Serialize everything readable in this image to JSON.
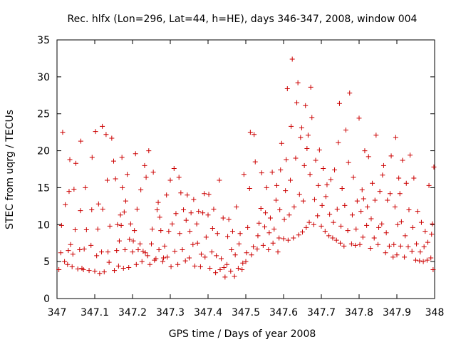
{
  "chart_data": {
    "type": "scatter",
    "title": "Rec. hlfx (Lon=296, Lat=44, h=HE), days 346-347, 2008, window 004",
    "xlabel": "GPS time / Days of year 2008",
    "ylabel": "STEC from uqrg / TECUs",
    "xlim": [
      347,
      348
    ],
    "ylim": [
      0,
      35
    ],
    "x_ticks": [
      "347",
      "347.1",
      "347.2",
      "347.3",
      "347.4",
      "347.5",
      "347.6",
      "347.7",
      "347.8",
      "347.9",
      "348"
    ],
    "y_ticks": [
      "0",
      "5",
      "10",
      "15",
      "20",
      "25",
      "30",
      "35"
    ],
    "grid": false,
    "marker": "+",
    "series_color": "#cc0000",
    "points": [
      [
        347.005,
        3.9
      ],
      [
        347.01,
        6.2
      ],
      [
        347.012,
        9.9
      ],
      [
        347.015,
        22.5
      ],
      [
        347.02,
        5.0
      ],
      [
        347.022,
        12.7
      ],
      [
        347.028,
        4.6
      ],
      [
        347.03,
        6.5
      ],
      [
        347.032,
        14.5
      ],
      [
        347.034,
        18.8
      ],
      [
        347.04,
        4.3
      ],
      [
        347.042,
        6.0
      ],
      [
        347.045,
        14.8
      ],
      [
        347.048,
        9.3
      ],
      [
        347.05,
        18.3
      ],
      [
        347.055,
        4.0
      ],
      [
        347.06,
        6.6
      ],
      [
        347.062,
        11.9
      ],
      [
        347.063,
        21.3
      ],
      [
        347.07,
        3.9
      ],
      [
        347.072,
        6.7
      ],
      [
        347.075,
        15.0
      ],
      [
        347.078,
        9.3
      ],
      [
        347.085,
        3.8
      ],
      [
        347.09,
        7.2
      ],
      [
        347.092,
        12.0
      ],
      [
        347.093,
        19.1
      ],
      [
        347.1,
        3.7
      ],
      [
        347.105,
        5.8
      ],
      [
        347.102,
        22.6
      ],
      [
        347.108,
        9.4
      ],
      [
        347.113,
        3.4
      ],
      [
        347.118,
        6.3
      ],
      [
        347.12,
        23.3
      ],
      [
        347.121,
        12.1
      ],
      [
        347.125,
        3.6
      ],
      [
        347.13,
        22.2
      ],
      [
        347.133,
        16.0
      ],
      [
        347.135,
        6.3
      ],
      [
        347.138,
        4.9
      ],
      [
        347.14,
        9.8
      ],
      [
        347.145,
        21.7
      ],
      [
        347.15,
        18.6
      ],
      [
        347.152,
        3.8
      ],
      [
        347.155,
        16.2
      ],
      [
        347.158,
        6.5
      ],
      [
        347.16,
        10.0
      ],
      [
        347.163,
        4.4
      ],
      [
        347.165,
        7.8
      ],
      [
        347.168,
        11.3
      ],
      [
        347.172,
        19.1
      ],
      [
        347.173,
        15.0
      ],
      [
        347.176,
        4.1
      ],
      [
        347.178,
        11.7
      ],
      [
        347.18,
        6.6
      ],
      [
        347.182,
        13.2
      ],
      [
        347.186,
        16.8
      ],
      [
        347.19,
        4.2
      ],
      [
        347.192,
        8.0
      ],
      [
        347.195,
        10.1
      ],
      [
        347.2,
        6.3
      ],
      [
        347.202,
        7.8
      ],
      [
        347.205,
        9.2
      ],
      [
        347.208,
        19.6
      ],
      [
        347.21,
        4.6
      ],
      [
        347.212,
        12.1
      ],
      [
        347.215,
        6.6
      ],
      [
        347.22,
        7.4
      ],
      [
        347.222,
        14.7
      ],
      [
        347.225,
        5.0
      ],
      [
        347.228,
        6.4
      ],
      [
        347.232,
        18.0
      ],
      [
        347.234,
        6.2
      ],
      [
        347.236,
        16.4
      ],
      [
        347.24,
        5.8
      ],
      [
        347.243,
        20.0
      ],
      [
        347.246,
        4.6
      ],
      [
        347.25,
        7.4
      ],
      [
        347.252,
        9.4
      ],
      [
        347.255,
        17.1
      ],
      [
        347.258,
        5.2
      ],
      [
        347.262,
        5.4
      ],
      [
        347.265,
        12.0
      ],
      [
        347.268,
        13.0
      ],
      [
        347.27,
        6.6
      ],
      [
        347.272,
        11.0
      ],
      [
        347.275,
        9.2
      ],
      [
        347.28,
        5.0
      ],
      [
        347.282,
        5.5
      ],
      [
        347.285,
        7.1
      ],
      [
        347.29,
        14.0
      ],
      [
        347.292,
        5.6
      ],
      [
        347.296,
        9.1
      ],
      [
        347.3,
        16.0
      ],
      [
        347.302,
        4.3
      ],
      [
        347.305,
        10.1
      ],
      [
        347.31,
        17.6
      ],
      [
        347.312,
        6.4
      ],
      [
        347.315,
        11.5
      ],
      [
        347.32,
        4.6
      ],
      [
        347.323,
        16.4
      ],
      [
        347.325,
        8.8
      ],
      [
        347.328,
        14.3
      ],
      [
        347.332,
        6.6
      ],
      [
        347.335,
        12.0
      ],
      [
        347.34,
        5.1
      ],
      [
        347.342,
        10.6
      ],
      [
        347.345,
        14.0
      ],
      [
        347.35,
        5.5
      ],
      [
        347.352,
        9.1
      ],
      [
        347.355,
        11.6
      ],
      [
        347.36,
        7.3
      ],
      [
        347.362,
        13.4
      ],
      [
        347.365,
        4.4
      ],
      [
        347.37,
        10.1
      ],
      [
        347.372,
        7.5
      ],
      [
        347.375,
        11.8
      ],
      [
        347.38,
        4.3
      ],
      [
        347.382,
        6.0
      ],
      [
        347.386,
        11.6
      ],
      [
        347.39,
        14.2
      ],
      [
        347.392,
        5.6
      ],
      [
        347.395,
        8.3
      ],
      [
        347.4,
        11.3
      ],
      [
        347.402,
        14.1
      ],
      [
        347.405,
        4.1
      ],
      [
        347.41,
        6.3
      ],
      [
        347.412,
        9.5
      ],
      [
        347.415,
        12.1
      ],
      [
        347.42,
        3.5
      ],
      [
        347.422,
        5.8
      ],
      [
        347.425,
        8.8
      ],
      [
        347.43,
        16.0
      ],
      [
        347.432,
        3.9
      ],
      [
        347.435,
        5.4
      ],
      [
        347.44,
        10.9
      ],
      [
        347.442,
        4.2
      ],
      [
        347.445,
        2.9
      ],
      [
        347.45,
        4.6
      ],
      [
        347.452,
        8.4
      ],
      [
        347.455,
        10.7
      ],
      [
        347.46,
        3.7
      ],
      [
        347.462,
        6.6
      ],
      [
        347.465,
        9.1
      ],
      [
        347.47,
        3.0
      ],
      [
        347.472,
        5.9
      ],
      [
        347.475,
        12.4
      ],
      [
        347.48,
        4.1
      ],
      [
        347.482,
        7.4
      ],
      [
        347.485,
        8.8
      ],
      [
        347.49,
        3.9
      ],
      [
        347.492,
        4.8
      ],
      [
        347.495,
        16.8
      ],
      [
        347.5,
        5.0
      ],
      [
        347.502,
        6.2
      ],
      [
        347.505,
        9.6
      ],
      [
        347.51,
        14.9
      ],
      [
        347.512,
        22.5
      ],
      [
        347.515,
        5.9
      ],
      [
        347.52,
        7.0
      ],
      [
        347.522,
        22.2
      ],
      [
        347.525,
        18.5
      ],
      [
        347.53,
        6.7
      ],
      [
        347.532,
        8.5
      ],
      [
        347.535,
        10.2
      ],
      [
        347.54,
        12.2
      ],
      [
        347.542,
        17.0
      ],
      [
        347.546,
        7.2
      ],
      [
        347.55,
        9.7
      ],
      [
        347.552,
        11.6
      ],
      [
        347.555,
        15.0
      ],
      [
        347.56,
        6.6
      ],
      [
        347.562,
        8.9
      ],
      [
        347.565,
        10.9
      ],
      [
        347.57,
        17.1
      ],
      [
        347.572,
        7.5
      ],
      [
        347.575,
        9.4
      ],
      [
        347.58,
        13.3
      ],
      [
        347.582,
        15.3
      ],
      [
        347.585,
        6.3
      ],
      [
        347.588,
        8.2
      ],
      [
        347.59,
        12.0
      ],
      [
        347.592,
        17.4
      ],
      [
        347.595,
        21.0
      ],
      [
        347.6,
        8.1
      ],
      [
        347.602,
        10.7
      ],
      [
        347.605,
        14.6
      ],
      [
        347.607,
        18.8
      ],
      [
        347.61,
        28.4
      ],
      [
        347.612,
        7.9
      ],
      [
        347.615,
        11.3
      ],
      [
        347.618,
        16.0
      ],
      [
        347.62,
        23.3
      ],
      [
        347.623,
        32.4
      ],
      [
        347.626,
        8.2
      ],
      [
        347.628,
        12.4
      ],
      [
        347.632,
        19.0
      ],
      [
        347.635,
        26.5
      ],
      [
        347.638,
        29.2
      ],
      [
        347.64,
        8.6
      ],
      [
        347.642,
        14.1
      ],
      [
        347.645,
        21.8
      ],
      [
        347.648,
        23.1
      ],
      [
        347.65,
        9.0
      ],
      [
        347.652,
        13.2
      ],
      [
        347.655,
        18.0
      ],
      [
        347.658,
        26.1
      ],
      [
        347.66,
        9.6
      ],
      [
        347.662,
        20.3
      ],
      [
        347.665,
        22.1
      ],
      [
        347.668,
        10.3
      ],
      [
        347.67,
        16.8
      ],
      [
        347.672,
        28.6
      ],
      [
        347.675,
        24.5
      ],
      [
        347.68,
        10.0
      ],
      [
        347.682,
        13.4
      ],
      [
        347.685,
        18.7
      ],
      [
        347.69,
        11.2
      ],
      [
        347.692,
        15.3
      ],
      [
        347.695,
        20.1
      ],
      [
        347.7,
        9.8
      ],
      [
        347.702,
        12.6
      ],
      [
        347.705,
        17.6
      ],
      [
        347.71,
        9.1
      ],
      [
        347.712,
        13.8
      ],
      [
        347.715,
        15.4
      ],
      [
        347.72,
        8.5
      ],
      [
        347.722,
        11.4
      ],
      [
        347.725,
        16.1
      ],
      [
        347.73,
        8.2
      ],
      [
        347.732,
        10.3
      ],
      [
        347.735,
        17.4
      ],
      [
        347.74,
        7.9
      ],
      [
        347.742,
        12.1
      ],
      [
        347.745,
        21.1
      ],
      [
        347.748,
        26.4
      ],
      [
        347.75,
        7.5
      ],
      [
        347.752,
        9.8
      ],
      [
        347.755,
        14.9
      ],
      [
        347.76,
        7.1
      ],
      [
        347.762,
        12.6
      ],
      [
        347.765,
        22.8
      ],
      [
        347.77,
        9.2
      ],
      [
        347.772,
        18.4
      ],
      [
        347.775,
        27.8
      ],
      [
        347.78,
        7.4
      ],
      [
        347.782,
        11.3
      ],
      [
        347.785,
        16.4
      ],
      [
        347.79,
        7.2
      ],
      [
        347.792,
        9.4
      ],
      [
        347.795,
        13.2
      ],
      [
        347.8,
        24.4
      ],
      [
        347.802,
        7.3
      ],
      [
        347.805,
        11.8
      ],
      [
        347.808,
        14.7
      ],
      [
        347.81,
        8.3
      ],
      [
        347.812,
        13.5
      ],
      [
        347.815,
        20.0
      ],
      [
        347.82,
        9.9
      ],
      [
        347.822,
        12.4
      ],
      [
        347.825,
        19.2
      ],
      [
        347.83,
        6.8
      ],
      [
        347.832,
        10.8
      ],
      [
        347.835,
        15.6
      ],
      [
        347.84,
        8.2
      ],
      [
        347.842,
        13.3
      ],
      [
        347.845,
        22.1
      ],
      [
        347.85,
        7.3
      ],
      [
        347.852,
        9.6
      ],
      [
        347.855,
        14.5
      ],
      [
        347.86,
        10.1
      ],
      [
        347.862,
        16.7
      ],
      [
        347.865,
        18.0
      ],
      [
        347.87,
        6.2
      ],
      [
        347.872,
        8.9
      ],
      [
        347.875,
        13.3
      ],
      [
        347.88,
        7.1
      ],
      [
        347.882,
        14.2
      ],
      [
        347.885,
        19.3
      ],
      [
        347.89,
        5.6
      ],
      [
        347.892,
        7.3
      ],
      [
        347.895,
        12.4
      ],
      [
        347.897,
        21.8
      ],
      [
        347.9,
        5.9
      ],
      [
        347.902,
        10.0
      ],
      [
        347.905,
        16.3
      ],
      [
        347.908,
        14.2
      ],
      [
        347.91,
        7.1
      ],
      [
        347.912,
        10.4
      ],
      [
        347.915,
        18.7
      ],
      [
        347.92,
        5.6
      ],
      [
        347.922,
        8.5
      ],
      [
        347.925,
        15.6
      ],
      [
        347.93,
        7.0
      ],
      [
        347.932,
        12.0
      ],
      [
        347.935,
        19.4
      ],
      [
        347.94,
        6.4
      ],
      [
        347.942,
        9.6
      ],
      [
        347.945,
        16.3
      ],
      [
        347.95,
        5.2
      ],
      [
        347.952,
        7.4
      ],
      [
        347.955,
        11.8
      ],
      [
        347.96,
        5.1
      ],
      [
        347.962,
        6.3
      ],
      [
        347.965,
        10.3
      ],
      [
        347.97,
        5.0
      ],
      [
        347.972,
        7.0
      ],
      [
        347.975,
        9.1
      ],
      [
        347.98,
        5.2
      ],
      [
        347.982,
        7.6
      ],
      [
        347.985,
        15.3
      ],
      [
        347.99,
        5.5
      ],
      [
        347.992,
        8.7
      ],
      [
        347.994,
        10.1
      ],
      [
        347.996,
        3.9
      ],
      [
        347.998,
        17.8
      ],
      [
        347.036,
        7.3
      ],
      [
        347.066,
        4.1
      ],
      [
        347.11,
        12.8
      ],
      [
        347.17,
        9.9
      ]
    ]
  }
}
